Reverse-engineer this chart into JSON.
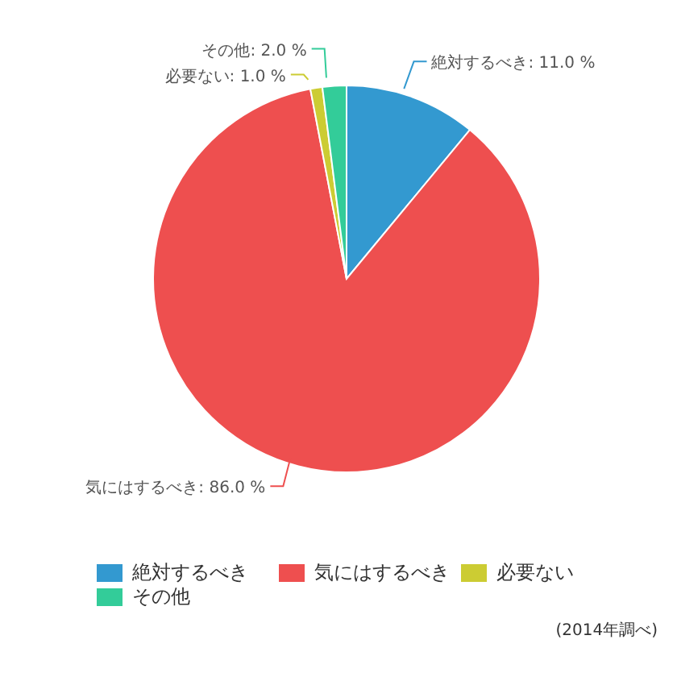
{
  "chart_data": {
    "type": "pie",
    "categories": [
      "絶対するべき",
      "気にはするべき",
      "必要ない",
      "その他"
    ],
    "values": [
      11,
      86,
      1,
      2
    ],
    "value_labels": [
      "絶対するべき: 11.0 %",
      "気にはするべき: 86.0 %",
      "必要ない: 1.0 %",
      "その他: 2.0 %"
    ],
    "colors": [
      "#3399d0",
      "#ee4f4f",
      "#cccc33",
      "#33cc99"
    ],
    "legend": "bottom",
    "annotations": [
      "(2014年調べ)"
    ]
  }
}
